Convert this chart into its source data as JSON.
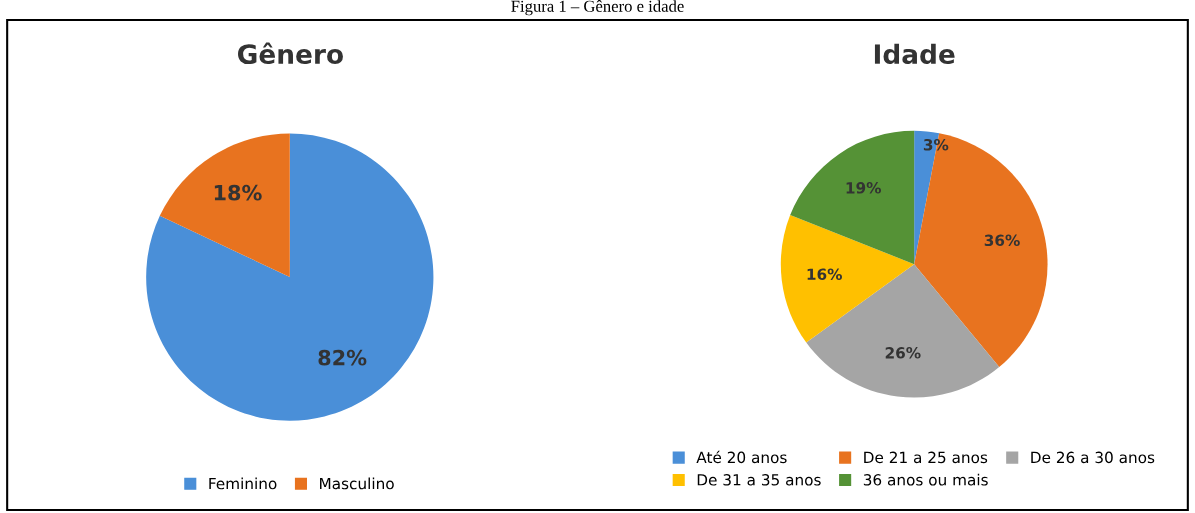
{
  "chart_data": [
    {
      "type": "pie",
      "title": "Gênero",
      "annotations": [
        "Figura 1 – Gênero e idade"
      ],
      "categories": [
        "Feminino",
        "Masculino"
      ],
      "values": [
        82,
        18
      ],
      "colors": [
        "#4a8fd8",
        "#e8731f"
      ],
      "value_labels": [
        "82%",
        "18%"
      ],
      "legend": "bottom"
    },
    {
      "type": "pie",
      "title": "Idade",
      "categories": [
        "Até 20 anos",
        "De 21 a 25 anos",
        "De 26 a 30 anos",
        "De 31 a 35 anos",
        "36 anos ou mais"
      ],
      "values": [
        3,
        36,
        26,
        16,
        19
      ],
      "colors": [
        "#4a8fd8",
        "#e8731f",
        "#a5a5a5",
        "#ffc000",
        "#559236"
      ],
      "value_labels": [
        "3%",
        "36%",
        "26%",
        "16%",
        "19%"
      ],
      "legend": "bottom"
    }
  ]
}
